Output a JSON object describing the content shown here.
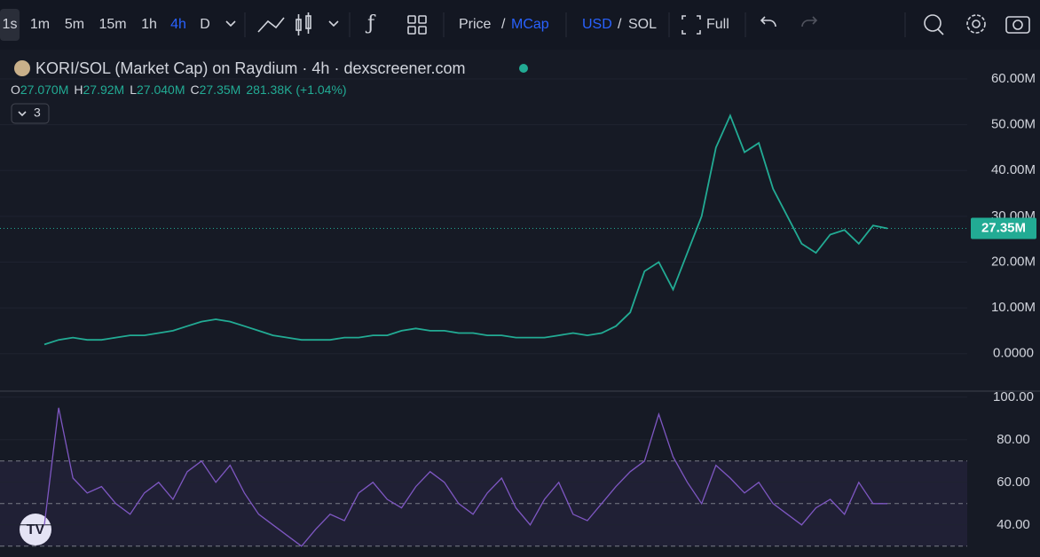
{
  "toolbar": {
    "intervals": [
      "1s",
      "1m",
      "5m",
      "15m",
      "1h",
      "4h",
      "D"
    ],
    "price": "Price",
    "slash1": "/",
    "mcap": "MCap",
    "usd": "USD",
    "slash2": "/",
    "sol": "SOL",
    "full": "Full"
  },
  "legend": {
    "title": "KORI/SOL (Market Cap) on Raydium · 4h · dexscreener.com",
    "o_key": "O",
    "o": "27.070M",
    "h_key": "H",
    "h": "27.92M",
    "l_key": "L",
    "l": "27.040M",
    "c_key": "C",
    "c": "27.35M",
    "change": "281.38K (+1.04%)",
    "indicators": "3"
  },
  "chart_data": [
    {
      "type": "line",
      "color": "#22ab94",
      "values": [
        2,
        3,
        3.5,
        3,
        3,
        3.5,
        4,
        4,
        4.5,
        5,
        6,
        7,
        7.5,
        7,
        6,
        5,
        4,
        3.5,
        3,
        3,
        3,
        3.5,
        3.5,
        4,
        4,
        5,
        5.5,
        5,
        5,
        4.5,
        4.5,
        4,
        4,
        3.5,
        3.5,
        3.5,
        4,
        4.5,
        4,
        4.5,
        6,
        9,
        18,
        20,
        14,
        22,
        30,
        45,
        52,
        44,
        46,
        36,
        30,
        24,
        22,
        26,
        27,
        24,
        28,
        27.35
      ],
      "ylim": [
        -8,
        66
      ],
      "yticks": [
        {
          "value": 60,
          "label": "60.00M"
        },
        {
          "value": 50,
          "label": "50.00M"
        },
        {
          "value": 40,
          "label": "40.00M"
        },
        {
          "value": 30,
          "label": "30.00M"
        },
        {
          "value": 20,
          "label": "20.00M"
        },
        {
          "value": 10,
          "label": "10.00M"
        },
        {
          "value": 0,
          "label": "0.0000"
        }
      ],
      "last": {
        "value": 27.35,
        "label": "27.35M"
      }
    },
    {
      "type": "line",
      "color": "#7e57c2",
      "values": [
        40,
        95,
        62,
        55,
        58,
        50,
        45,
        55,
        60,
        52,
        65,
        70,
        60,
        68,
        55,
        45,
        40,
        35,
        30,
        38,
        45,
        42,
        55,
        60,
        52,
        48,
        58,
        65,
        60,
        50,
        45,
        55,
        62,
        48,
        40,
        52,
        60,
        45,
        42,
        50,
        58,
        65,
        70,
        92,
        72,
        60,
        50,
        68,
        62,
        55,
        60,
        50,
        45,
        40,
        48,
        52,
        45,
        60,
        50,
        50
      ],
      "ylim": [
        27,
        102
      ],
      "yticks": [
        {
          "value": 100,
          "label": "100.00"
        },
        {
          "value": 80,
          "label": "80.00"
        },
        {
          "value": 60,
          "label": "60.00"
        },
        {
          "value": 40,
          "label": "40.00"
        }
      ],
      "levels": [
        70,
        50,
        30
      ]
    }
  ]
}
